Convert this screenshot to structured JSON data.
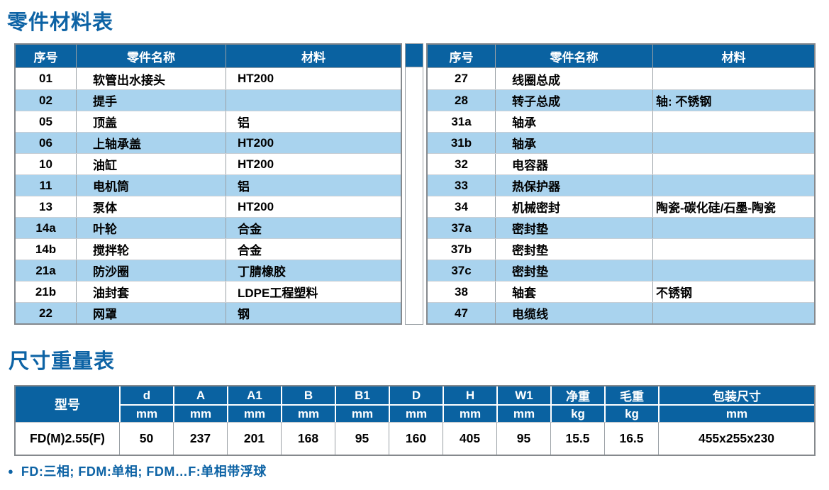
{
  "titles": {
    "parts": "零件材料表",
    "dimensions": "尺寸重量表"
  },
  "colors": {
    "header_blue": "#0a62a1",
    "stripe_blue": "#a9d3ee",
    "title_blue": "#0d63a5",
    "border_gray": "#85898d"
  },
  "parts_table": {
    "headers": [
      "序号",
      "零件名称",
      "材料"
    ],
    "left_rows": [
      {
        "no": "01",
        "name": "软管出水接头",
        "material": "HT200"
      },
      {
        "no": "02",
        "name": "提手",
        "material": ""
      },
      {
        "no": "05",
        "name": "顶盖",
        "material": "铝"
      },
      {
        "no": "06",
        "name": "上轴承盖",
        "material": "HT200"
      },
      {
        "no": "10",
        "name": "油缸",
        "material": "HT200"
      },
      {
        "no": "11",
        "name": "电机筒",
        "material": "铝"
      },
      {
        "no": "13",
        "name": "泵体",
        "material": "HT200"
      },
      {
        "no": "14a",
        "name": "叶轮",
        "material": "合金"
      },
      {
        "no": "14b",
        "name": "搅拌轮",
        "material": "合金"
      },
      {
        "no": "21a",
        "name": "防沙圈",
        "material": "丁腈橡胶"
      },
      {
        "no": "21b",
        "name": "油封套",
        "material": "LDPE工程塑料"
      },
      {
        "no": "22",
        "name": "网罩",
        "material": "钢"
      }
    ],
    "right_rows": [
      {
        "no": "27",
        "name": "线圈总成",
        "material": ""
      },
      {
        "no": "28",
        "name": "转子总成",
        "material": "轴: 不锈钢"
      },
      {
        "no": "31a",
        "name": "轴承",
        "material": ""
      },
      {
        "no": "31b",
        "name": "轴承",
        "material": ""
      },
      {
        "no": "32",
        "name": "电容器",
        "material": ""
      },
      {
        "no": "33",
        "name": "热保护器",
        "material": ""
      },
      {
        "no": "34",
        "name": "机械密封",
        "material": "陶瓷-碳化硅/石墨-陶瓷"
      },
      {
        "no": "37a",
        "name": "密封垫",
        "material": ""
      },
      {
        "no": "37b",
        "name": "密封垫",
        "material": ""
      },
      {
        "no": "37c",
        "name": "密封垫",
        "material": ""
      },
      {
        "no": "38",
        "name": "轴套",
        "material": "不锈钢"
      },
      {
        "no": "47",
        "name": "电缆线",
        "material": ""
      }
    ]
  },
  "dimension_table": {
    "model_header": "型号",
    "columns": [
      {
        "label": "d",
        "unit": "mm"
      },
      {
        "label": "A",
        "unit": "mm"
      },
      {
        "label": "A1",
        "unit": "mm"
      },
      {
        "label": "B",
        "unit": "mm"
      },
      {
        "label": "B1",
        "unit": "mm"
      },
      {
        "label": "D",
        "unit": "mm"
      },
      {
        "label": "H",
        "unit": "mm"
      },
      {
        "label": "W1",
        "unit": "mm"
      },
      {
        "label": "净重",
        "unit": "kg"
      },
      {
        "label": "毛重",
        "unit": "kg"
      },
      {
        "label": "包装尺寸",
        "unit": "mm"
      }
    ],
    "row": {
      "model": "FD(M)2.55(F)",
      "values": [
        "50",
        "237",
        "201",
        "168",
        "95",
        "160",
        "405",
        "95",
        "15.5",
        "16.5",
        "455x255x230"
      ]
    }
  },
  "footnote": {
    "bullet": "●",
    "text": "FD:三相; FDM:单相; FDM…F:单相带浮球"
  }
}
